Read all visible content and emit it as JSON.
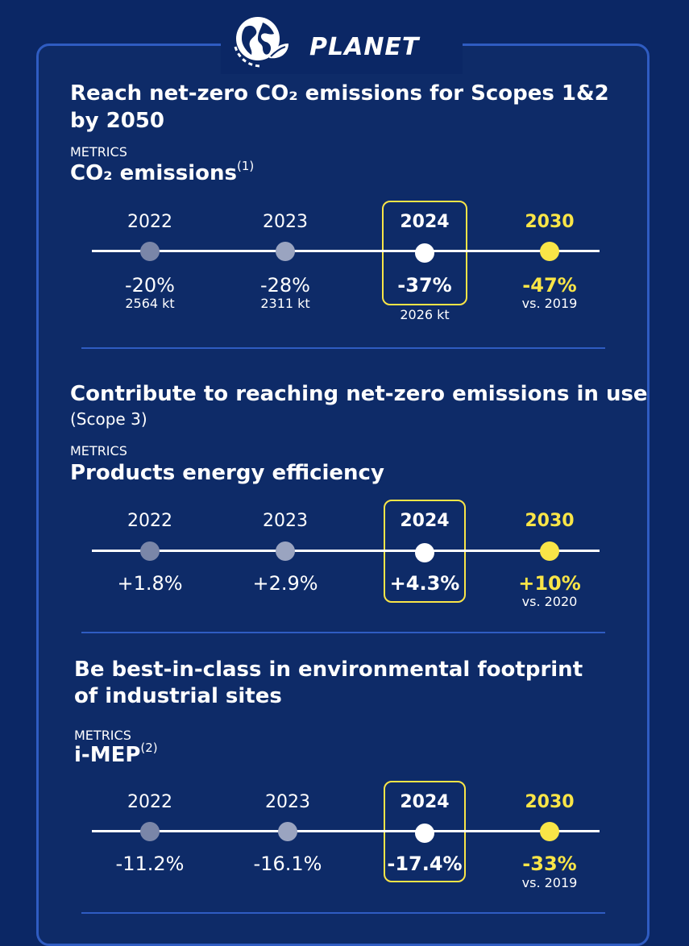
{
  "brand": {
    "name": "PLANET",
    "logo_icon": "globe-leaf-icon"
  },
  "colors": {
    "background": "#0b2765",
    "accent": "#f9e547",
    "border": "#2f5cc2"
  },
  "sections": [
    {
      "heading_line1": "Reach net-zero CO₂ emissions for Scopes 1&2",
      "heading_line2": "by 2050",
      "metrics_label": "METRICS",
      "metric_title": "CO₂ emissions",
      "metric_footnote": "(1)",
      "points": [
        {
          "year": "2022",
          "value": "-20%",
          "note": "2564 kt"
        },
        {
          "year": "2023",
          "value": "-28%",
          "note": "2311 kt"
        },
        {
          "year": "2024",
          "value": "-37%",
          "note": "2026 kt"
        },
        {
          "year": "2030",
          "value": "-47%",
          "note": "vs. 2019"
        }
      ]
    },
    {
      "heading_line1": "Contribute to reaching net-zero emissions in use",
      "subheading": "(Scope 3)",
      "metrics_label": "METRICS",
      "metric_title": "Products energy efficiency",
      "points": [
        {
          "year": "2022",
          "value": "+1.8%"
        },
        {
          "year": "2023",
          "value": "+2.9%"
        },
        {
          "year": "2024",
          "value": "+4.3%"
        },
        {
          "year": "2030",
          "value": "+10%",
          "note": "vs. 2020"
        }
      ]
    },
    {
      "heading_line1": "Be best-in-class in environmental footprint",
      "heading_line2": "of industrial sites",
      "metrics_label": "METRICS",
      "metric_title": "i-MEP",
      "metric_footnote": "(2)",
      "points": [
        {
          "year": "2022",
          "value": "-11.2%"
        },
        {
          "year": "2023",
          "value": "-16.1%"
        },
        {
          "year": "2024",
          "value": "-17.4%"
        },
        {
          "year": "2030",
          "value": "-33%",
          "note": "vs. 2019"
        }
      ]
    }
  ]
}
